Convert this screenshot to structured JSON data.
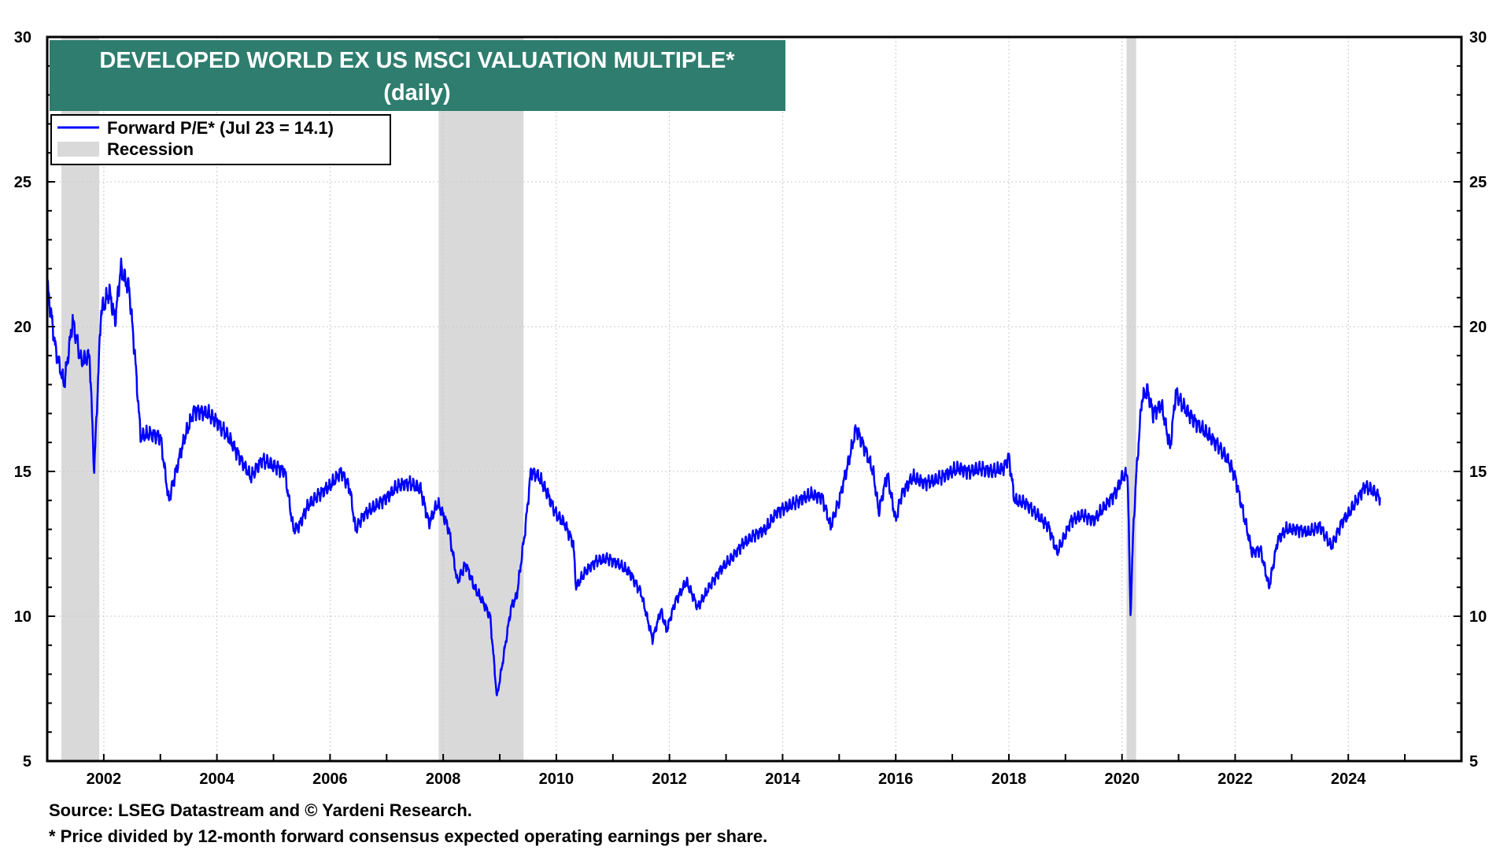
{
  "chart_data": {
    "type": "line",
    "title": "DEVELOPED WORLD EX US MSCI VALUATION MULTIPLE*",
    "subtitle": "(daily)",
    "xlim": [
      2001.0,
      2026.0
    ],
    "ylim": [
      5,
      30
    ],
    "y_ticks": [
      5,
      10,
      15,
      20,
      25,
      30
    ],
    "x_ticks": [
      2002,
      2004,
      2006,
      2008,
      2010,
      2012,
      2014,
      2016,
      2018,
      2020,
      2022,
      2024
    ],
    "x_tick_labels": [
      "2002",
      "2004",
      "2006",
      "2008",
      "2010",
      "2012",
      "2014",
      "2016",
      "2018",
      "2020",
      "2022",
      "2024"
    ],
    "y_tick_labels": [
      "5",
      "10",
      "15",
      "20",
      "25",
      "30"
    ],
    "grid": true,
    "legend_position": "top-left",
    "series": [
      {
        "name": "Forward P/E* (Jul 23 = 14.1)",
        "color": "#0000ff",
        "x": [
          2001.0,
          2001.15,
          2001.3,
          2001.45,
          2001.6,
          2001.75,
          2001.83,
          2001.95,
          2002.1,
          2002.2,
          2002.3,
          2002.45,
          2002.55,
          2002.65,
          2002.8,
          2003.0,
          2003.15,
          2003.3,
          2003.45,
          2003.6,
          2003.85,
          2004.0,
          2004.2,
          2004.4,
          2004.6,
          2004.8,
          2005.0,
          2005.2,
          2005.35,
          2005.45,
          2005.6,
          2005.8,
          2006.0,
          2006.2,
          2006.35,
          2006.45,
          2006.6,
          2006.8,
          2007.0,
          2007.2,
          2007.4,
          2007.6,
          2007.75,
          2007.9,
          2008.0,
          2008.1,
          2008.25,
          2008.4,
          2008.55,
          2008.7,
          2008.83,
          2008.95,
          2009.05,
          2009.2,
          2009.3,
          2009.45,
          2009.55,
          2009.7,
          2009.85,
          2010.0,
          2010.15,
          2010.3,
          2010.35,
          2010.5,
          2010.7,
          2010.9,
          2011.1,
          2011.3,
          2011.5,
          2011.7,
          2011.85,
          2011.95,
          2012.1,
          2012.3,
          2012.5,
          2012.7,
          2012.9,
          2013.1,
          2013.3,
          2013.5,
          2013.7,
          2013.9,
          2014.1,
          2014.3,
          2014.5,
          2014.7,
          2014.85,
          2015.0,
          2015.15,
          2015.3,
          2015.45,
          2015.6,
          2015.7,
          2015.85,
          2016.0,
          2016.1,
          2016.3,
          2016.5,
          2016.7,
          2016.9,
          2017.1,
          2017.3,
          2017.5,
          2017.7,
          2017.9,
          2018.0,
          2018.1,
          2018.3,
          2018.5,
          2018.7,
          2018.85,
          2018.95,
          2019.1,
          2019.3,
          2019.5,
          2019.7,
          2019.9,
          2020.0,
          2020.1,
          2020.15,
          2020.2,
          2020.25,
          2020.35,
          2020.45,
          2020.55,
          2020.7,
          2020.85,
          2020.95,
          2021.1,
          2021.3,
          2021.5,
          2021.7,
          2021.9,
          2022.0,
          2022.15,
          2022.3,
          2022.45,
          2022.6,
          2022.75,
          2022.9,
          2023.1,
          2023.3,
          2023.5,
          2023.7,
          2023.9,
          2024.0,
          2024.15,
          2024.3,
          2024.45,
          2024.56
        ],
        "values": [
          21.5,
          19.2,
          18.0,
          20.2,
          18.8,
          19.0,
          15.0,
          20.5,
          21.2,
          20.2,
          22.0,
          21.3,
          19.0,
          16.2,
          16.3,
          16.2,
          14.0,
          15.2,
          16.3,
          17.1,
          17.0,
          16.7,
          16.2,
          15.5,
          14.8,
          15.4,
          15.2,
          15.0,
          13.0,
          13.1,
          13.8,
          14.2,
          14.5,
          15.0,
          14.4,
          13.0,
          13.5,
          13.8,
          14.1,
          14.5,
          14.6,
          14.4,
          13.2,
          13.9,
          13.5,
          13.0,
          11.2,
          11.8,
          11.0,
          10.5,
          10.0,
          7.2,
          8.4,
          10.3,
          10.7,
          13.0,
          15.0,
          14.8,
          14.2,
          13.5,
          13.2,
          12.5,
          11.0,
          11.5,
          11.9,
          12.0,
          11.8,
          11.5,
          10.8,
          9.2,
          10.2,
          9.5,
          10.5,
          11.2,
          10.3,
          11.0,
          11.6,
          12.0,
          12.5,
          12.8,
          13.0,
          13.6,
          13.8,
          14.0,
          14.2,
          14.1,
          13.1,
          14.0,
          15.2,
          16.5,
          15.8,
          15.0,
          13.6,
          14.9,
          13.3,
          14.2,
          14.8,
          14.6,
          14.7,
          14.9,
          15.1,
          15.0,
          15.1,
          15.0,
          15.1,
          15.5,
          14.0,
          13.9,
          13.5,
          13.1,
          12.2,
          12.6,
          13.3,
          13.5,
          13.3,
          13.8,
          14.3,
          14.8,
          14.9,
          10.0,
          13.0,
          14.8,
          17.5,
          17.8,
          17.0,
          17.3,
          15.8,
          17.7,
          17.2,
          16.7,
          16.3,
          15.9,
          15.3,
          14.8,
          13.5,
          12.2,
          12.3,
          11.0,
          12.6,
          13.0,
          13.0,
          12.9,
          13.1,
          12.4,
          13.3,
          13.5,
          14.0,
          14.5,
          14.3,
          14.1
        ]
      }
    ],
    "recessions": [
      [
        2001.25,
        2001.92
      ],
      [
        2007.92,
        2009.42
      ],
      [
        2020.08,
        2020.25
      ]
    ],
    "annotations": {
      "legend_line": "Forward P/E* (Jul 23 = 14.1)",
      "legend_recession": "Recession",
      "source": "Source: LSEG Datastream and © Yardeni Research.",
      "footnote": "* Price divided by 12-month forward consensus expected operating earnings per share."
    },
    "colors": {
      "line": "#0000ff",
      "recession": "#d9d9d9",
      "title_bg": "#2e7d6e",
      "grid": "#c8c8c8"
    }
  }
}
